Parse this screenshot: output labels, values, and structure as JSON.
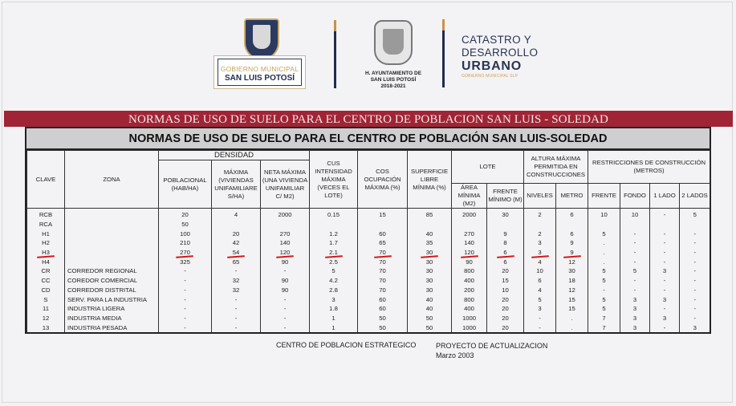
{
  "logos": {
    "gobierno_line1": "GOBIERNO MUNICIPAL",
    "gobierno_line2": "SAN LUIS POTOSÍ",
    "ayuntamiento": [
      "H. AYUNTAMIENTO DE",
      "SAN LUIS POTOSÍ",
      "2018-2021"
    ],
    "catastro_line1": "CATASTRO Y",
    "catastro_line2": "DESARROLLO",
    "catastro_line3": "URBANO",
    "catastro_line4": "GOBIERNO MUNICIPAL SLP"
  },
  "colors": {
    "band": "#a02435",
    "navy": "#1f2c4d",
    "gold": "#c9a25a",
    "annotation": "#d21a1a"
  },
  "band_title": "NORMAS DE USO DE SUELO PARA EL CENTRO DE POBLACION SAN LUIS - SOLEDAD",
  "table": {
    "title": "NORMAS DE USO DE SUELO PARA EL CENTRO DE POBLACIÓN SAN LUIS-SOLEDAD",
    "headers": {
      "clave": "CLAVE",
      "zona": "ZONA",
      "densidad": "DENSIDAD",
      "poblacional": "POBLACIONAL (HAB/HA)",
      "maxima": "MÁXIMA (VIVIENDAS UNIFAMILIARE S/HA)",
      "neta": "NETA MÁXIMA (UNA VIVIENDA UNIFAMILIAR C/ M2)",
      "cus": "CUS INTENSIDAD MÁXIMA (VECES EL LOTE)",
      "cos": "COS OCUPACIÓN MÁXIMA (%)",
      "superficie": "SUPERFICIE LIBRE MÍNIMA (%)",
      "lote": "LOTE",
      "area": "ÁREA MÍNIMA (M2)",
      "frente_min": "FRENTE MÍNIMO (M)",
      "altura": "ALTURA MÁXIMA PERMITIDA EN CONSTRUCCIONES",
      "niveles": "NIVELES",
      "metro": "METRO",
      "restricciones": "RESTRICCIONES DE CONSTRUCCIÓN (METROS)",
      "frente": "FRENTE",
      "fondo": "FONDO",
      "lado1": "1 LADO",
      "lado2": "2 LADOS"
    },
    "rows": [
      [
        "RCB",
        "",
        "20",
        "4",
        "2000",
        "0.15",
        "15",
        "85",
        "2000",
        "30",
        "2",
        "6",
        "10",
        "10",
        "-",
        "5"
      ],
      [
        "RCA",
        "",
        "50",
        "",
        "",
        "",
        "",
        "",
        "",
        "",
        "",
        "",
        "",
        "",
        "",
        ""
      ],
      [
        "H1",
        "",
        "100",
        "20",
        "270",
        "1.2",
        "60",
        "40",
        "270",
        "9",
        "2",
        "6",
        "5",
        "-",
        "-",
        "-"
      ],
      [
        "H2",
        "",
        "210",
        "42",
        "140",
        "1.7",
        "65",
        "35",
        "140",
        "8",
        "3",
        "9",
        ".",
        "-",
        "-",
        "-"
      ],
      [
        "H3",
        "",
        "270",
        "54",
        "120",
        "2.1",
        "70",
        "30",
        "120",
        "6",
        "3",
        "9",
        ".",
        "-",
        "-",
        "-"
      ],
      [
        "H4",
        "",
        "325",
        "65",
        "90",
        "2.5",
        "70",
        "30",
        "90",
        "6",
        "4",
        "12",
        ".",
        "-",
        "-",
        "-"
      ],
      [
        "CR",
        "CORREDOR REGIONAL",
        "-",
        "-",
        "-",
        "5",
        "70",
        "30",
        "800",
        "20",
        "10",
        "30",
        "5",
        "5",
        "3",
        "-"
      ],
      [
        "CC",
        "COREDOR COMERCIAL",
        "-",
        "32",
        "90",
        "4.2",
        "70",
        "30",
        "400",
        "15",
        "6",
        "18",
        "5",
        "-",
        "-",
        "-"
      ],
      [
        "CD",
        "CORREDOR DISTRITAL",
        "-",
        "32",
        "90",
        "2.8",
        "70",
        "30",
        "200",
        "10",
        "4",
        "12",
        "-",
        "-",
        "-",
        "-"
      ],
      [
        "S",
        "SERV. PARA LA INDUSTRIA",
        "-",
        "-",
        "-",
        "3",
        "60",
        "40",
        "800",
        "20",
        "5",
        "15",
        "5",
        "3",
        "3",
        "-"
      ],
      [
        "11",
        "INDUSTRIA LIGERA",
        "-",
        "-",
        "-",
        "1.8",
        "60",
        "40",
        "400",
        "20",
        "3",
        "15",
        "5",
        "3",
        "-",
        "-"
      ],
      [
        "12",
        "INDUSTRIA MEDIA",
        "-",
        "-",
        "-",
        "1",
        "50",
        "50",
        "1000",
        "20",
        "-",
        ".",
        "7",
        "3",
        "3",
        "-"
      ],
      [
        "13",
        "INDUSTRIA PESADA",
        "-",
        "-",
        "-",
        "1",
        "50",
        "50",
        "1000",
        "20",
        "-",
        ".",
        "7",
        "3",
        "-",
        "3"
      ]
    ]
  },
  "footer": {
    "left": "CENTRO DE POBLACION ESTRATEGICO",
    "right": "PROYECTO DE ACTUALIZACION",
    "date": "Marzo 2003"
  }
}
